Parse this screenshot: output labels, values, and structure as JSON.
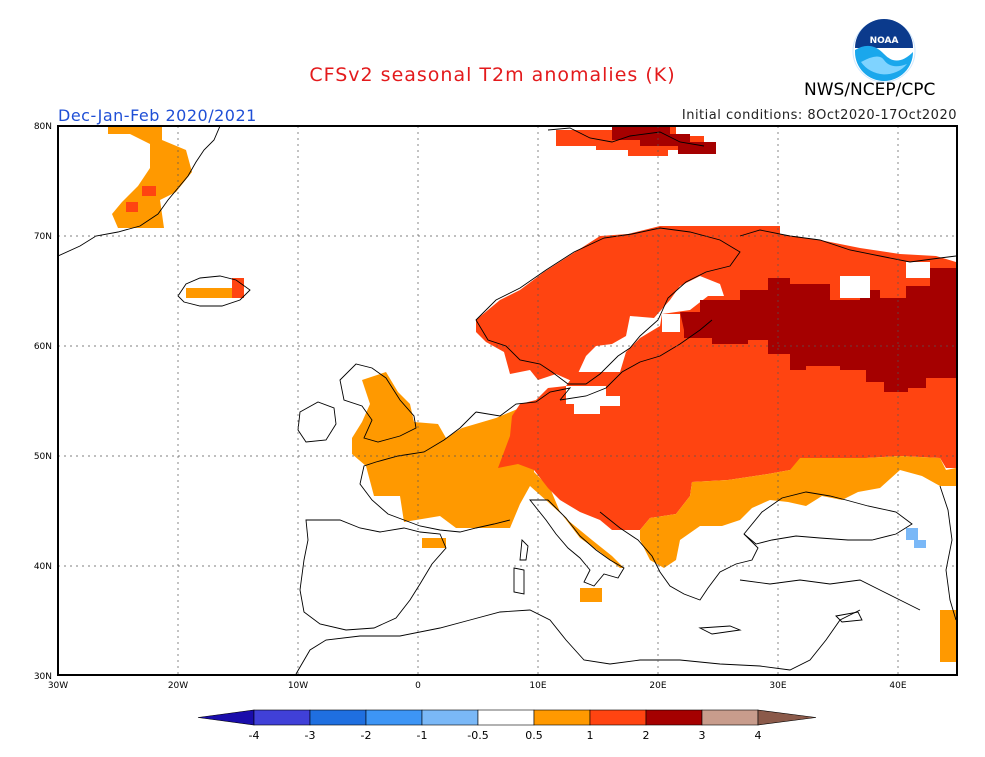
{
  "title": "CFSv2 seasonal T2m anomalies (K)",
  "agency": "NWS/NCEP/CPC",
  "logo_text": "NOAA",
  "season_label": "Dec-Jan-Feb 2020/2021",
  "initial_conditions": "Initial conditions: 8Oct2020-17Oct2020",
  "colors": {
    "title": "#e31a1c",
    "season": "#1f4fd6",
    "ocean": "#ffffff",
    "coast": "#000000"
  },
  "lat_labels": [
    "80N",
    "70N",
    "60N",
    "50N",
    "40N",
    "30N"
  ],
  "lon_labels": [
    "30W",
    "20W",
    "10W",
    "0",
    "10E",
    "20E",
    "30E",
    "40E"
  ],
  "colorbar": {
    "bins": [
      {
        "color": "#1a0dab"
      },
      {
        "color": "#4040d8"
      },
      {
        "color": "#1f6fe0"
      },
      {
        "color": "#3d95f5"
      },
      {
        "color": "#7ab8f7"
      },
      {
        "color": "#ffffff"
      },
      {
        "color": "#ff9900"
      },
      {
        "color": "#ff4411"
      },
      {
        "color": "#a50000"
      },
      {
        "color": "#c89c8c"
      },
      {
        "color": "#8b5a4a"
      }
    ],
    "tick_labels": [
      "-4",
      "-3",
      "-2",
      "-1",
      "-0.5",
      "0.5",
      "1",
      "2",
      "3",
      "4"
    ]
  },
  "anomaly_regions": [
    {
      "name": "greenland-east",
      "level": "0.5-1"
    },
    {
      "name": "greenland-east-warm",
      "level": "1-2"
    },
    {
      "name": "svalbard",
      "level": "1-2"
    },
    {
      "name": "svalbard-core",
      "level": "2-3"
    },
    {
      "name": "iceland",
      "level": "0.5-1"
    },
    {
      "name": "iceland-east",
      "level": "1-2"
    },
    {
      "name": "western-europe",
      "level": "0.5-1"
    },
    {
      "name": "scandinavia",
      "level": "1-2"
    },
    {
      "name": "central-eastern-europe",
      "level": "1-2"
    },
    {
      "name": "russia-core",
      "level": "2-3"
    },
    {
      "name": "balkans-blacksea",
      "level": "0.5-1"
    },
    {
      "name": "caspian-south",
      "level": "0.5-1"
    },
    {
      "name": "sicily",
      "level": "0.5-1"
    },
    {
      "name": "caucasus-cool",
      "level": "-1--0.5"
    }
  ]
}
